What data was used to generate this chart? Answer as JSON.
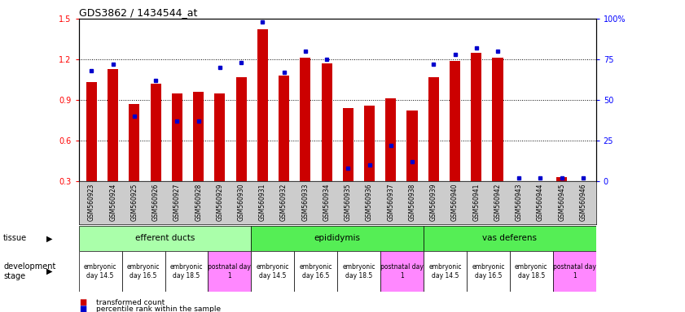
{
  "title": "GDS3862 / 1434544_at",
  "samples": [
    "GSM560923",
    "GSM560924",
    "GSM560925",
    "GSM560926",
    "GSM560927",
    "GSM560928",
    "GSM560929",
    "GSM560930",
    "GSM560931",
    "GSM560932",
    "GSM560933",
    "GSM560934",
    "GSM560935",
    "GSM560936",
    "GSM560937",
    "GSM560938",
    "GSM560939",
    "GSM560940",
    "GSM560941",
    "GSM560942",
    "GSM560943",
    "GSM560944",
    "GSM560945",
    "GSM560946"
  ],
  "transformed_count": [
    1.03,
    1.13,
    0.87,
    1.02,
    0.95,
    0.96,
    0.95,
    1.07,
    1.42,
    1.08,
    1.21,
    1.17,
    0.84,
    0.86,
    0.91,
    0.82,
    1.07,
    1.19,
    1.25,
    1.21,
    0.3,
    0.3,
    0.33,
    0.3
  ],
  "percentile_rank": [
    68,
    72,
    40,
    62,
    37,
    37,
    70,
    73,
    98,
    67,
    80,
    75,
    8,
    10,
    22,
    12,
    72,
    78,
    82,
    80,
    2,
    2,
    2,
    2
  ],
  "ylim_left": [
    0.3,
    1.5
  ],
  "ylim_right": [
    0,
    100
  ],
  "yticks_left": [
    0.3,
    0.6,
    0.9,
    1.2,
    1.5
  ],
  "yticks_right": [
    0,
    25,
    50,
    75,
    100
  ],
  "ytick_labels_right": [
    "0",
    "25",
    "50",
    "75",
    "100%"
  ],
  "bar_color": "#cc0000",
  "dot_color": "#0000cc",
  "tissue_groups": [
    {
      "label": "efferent ducts",
      "start": 0,
      "end": 8,
      "color": "#aaffaa"
    },
    {
      "label": "epididymis",
      "start": 8,
      "end": 16,
      "color": "#44dd44"
    },
    {
      "label": "vas deferens",
      "start": 16,
      "end": 24,
      "color": "#44dd44"
    }
  ],
  "dev_stage_groups": [
    {
      "label": "embryonic\nday 14.5",
      "start": 0,
      "end": 2,
      "color": "#ffffff"
    },
    {
      "label": "embryonic\nday 16.5",
      "start": 2,
      "end": 4,
      "color": "#ffffff"
    },
    {
      "label": "embryonic\nday 18.5",
      "start": 4,
      "end": 6,
      "color": "#ffffff"
    },
    {
      "label": "postnatal day\n1",
      "start": 6,
      "end": 8,
      "color": "#ff88ff"
    },
    {
      "label": "embryonic\nday 14.5",
      "start": 8,
      "end": 10,
      "color": "#ffffff"
    },
    {
      "label": "embryonic\nday 16.5",
      "start": 10,
      "end": 12,
      "color": "#ffffff"
    },
    {
      "label": "embryonic\nday 18.5",
      "start": 12,
      "end": 14,
      "color": "#ffffff"
    },
    {
      "label": "postnatal day\n1",
      "start": 14,
      "end": 16,
      "color": "#ff88ff"
    },
    {
      "label": "embryonic\nday 14.5",
      "start": 16,
      "end": 18,
      "color": "#ffffff"
    },
    {
      "label": "embryonic\nday 16.5",
      "start": 18,
      "end": 20,
      "color": "#ffffff"
    },
    {
      "label": "embryonic\nday 18.5",
      "start": 20,
      "end": 22,
      "color": "#ffffff"
    },
    {
      "label": "postnatal day\n1",
      "start": 22,
      "end": 24,
      "color": "#ff88ff"
    }
  ],
  "legend_items": [
    {
      "label": "transformed count",
      "color": "#cc0000"
    },
    {
      "label": "percentile rank within the sample",
      "color": "#0000cc"
    }
  ]
}
